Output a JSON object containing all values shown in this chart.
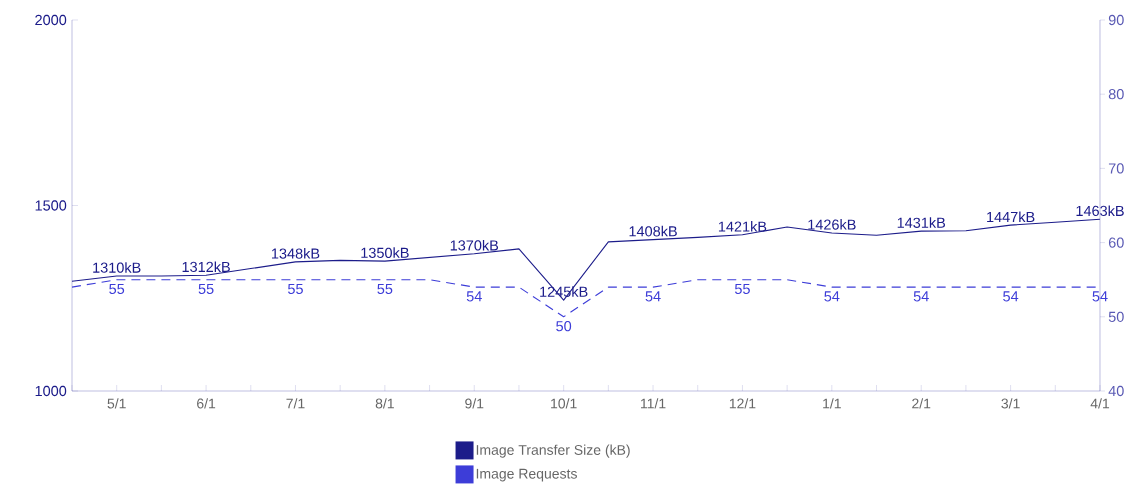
{
  "chart_data": {
    "type": "line",
    "categories": [
      null,
      "5/1",
      null,
      "6/1",
      null,
      "7/1",
      null,
      "8/1",
      null,
      "9/1",
      null,
      "10/1",
      null,
      "11/1",
      null,
      "12/1",
      null,
      "1/1",
      null,
      "2/1",
      null,
      "3/1",
      null,
      "4/1"
    ],
    "series": [
      {
        "name": "Image Transfer Size (kB)",
        "color": "#1c1c8a",
        "line_style": "solid",
        "values": [
          1296,
          1310,
          1310,
          1312,
          1330,
          1348,
          1352,
          1350,
          1360,
          1370,
          1383,
          1245,
          1402,
          1408,
          1414,
          1421,
          1442,
          1426,
          1420,
          1431,
          1432,
          1447,
          1455,
          1463
        ],
        "value_labels": [
          null,
          "1310kB",
          null,
          "1312kB",
          null,
          "1348kB",
          null,
          "1350kB",
          null,
          "1370kB",
          null,
          "1245kB",
          null,
          "1408kB",
          null,
          "1421kB",
          null,
          "1426kB",
          null,
          "1431kB",
          null,
          "1447kB",
          null,
          "1463kB"
        ]
      },
      {
        "name": "Image Requests",
        "color": "#3d3dd8",
        "line_style": "dashed",
        "axis": "y2",
        "values": [
          54,
          55,
          55,
          55,
          55,
          55,
          55,
          55,
          55,
          54,
          54,
          50,
          54,
          54,
          55,
          55,
          55,
          54,
          54,
          54,
          54,
          54,
          54,
          54
        ],
        "value_labels": [
          null,
          "55",
          null,
          "55",
          null,
          "55",
          null,
          "55",
          null,
          "54",
          null,
          "50",
          null,
          "54",
          null,
          "55",
          null,
          "54",
          null,
          "54",
          null,
          "54",
          null,
          "54"
        ]
      }
    ],
    "ylim": [
      1000,
      2000
    ],
    "yticks": [
      1000,
      1500,
      2000
    ],
    "y2lim": [
      40,
      90
    ],
    "y2ticks": [
      40,
      50,
      60,
      70,
      80,
      90
    ],
    "legend": "bottom",
    "marker": "none"
  }
}
